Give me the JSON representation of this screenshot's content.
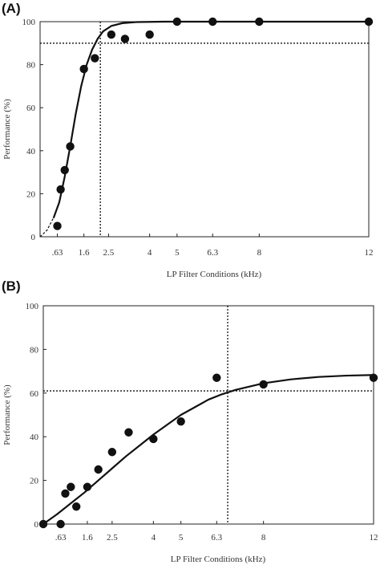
{
  "chart_data": [
    {
      "panel_label": "(A)",
      "type": "scatter",
      "xlabel": "LP Filter Conditions (kHz)",
      "ylabel": "Performance (%)",
      "ylim": [
        0,
        100
      ],
      "x_ticks": [
        ".63",
        "1.6",
        "2.5",
        "4",
        "5",
        "6.3",
        "8",
        "12"
      ],
      "y_ticks": [
        "0",
        "20",
        "40",
        "60",
        "80",
        "100"
      ],
      "tick_positions": [
        0.63,
        1.6,
        2.5,
        4,
        5,
        6.3,
        8,
        12
      ],
      "xlim": [
        0,
        12
      ],
      "points": [
        {
          "x": 0.63,
          "y": 5
        },
        {
          "x": 0.75,
          "y": 22
        },
        {
          "x": 0.9,
          "y": 31
        },
        {
          "x": 1.1,
          "y": 42
        },
        {
          "x": 1.6,
          "y": 78
        },
        {
          "x": 2.0,
          "y": 83
        },
        {
          "x": 2.6,
          "y": 94
        },
        {
          "x": 3.1,
          "y": 92
        },
        {
          "x": 4.0,
          "y": 94
        },
        {
          "x": 5.0,
          "y": 100
        },
        {
          "x": 6.3,
          "y": 100
        },
        {
          "x": 8.0,
          "y": 100
        },
        {
          "x": 12.0,
          "y": 100
        }
      ],
      "fit_curve": [
        {
          "x": 0.0,
          "y": 0
        },
        {
          "x": 0.25,
          "y": 3
        },
        {
          "x": 0.5,
          "y": 9
        },
        {
          "x": 0.7,
          "y": 16
        },
        {
          "x": 0.9,
          "y": 28
        },
        {
          "x": 1.1,
          "y": 42
        },
        {
          "x": 1.3,
          "y": 57
        },
        {
          "x": 1.5,
          "y": 70
        },
        {
          "x": 1.7,
          "y": 80
        },
        {
          "x": 1.9,
          "y": 87
        },
        {
          "x": 2.1,
          "y": 92
        },
        {
          "x": 2.3,
          "y": 95.5
        },
        {
          "x": 2.6,
          "y": 98
        },
        {
          "x": 3.0,
          "y": 99.3
        },
        {
          "x": 3.5,
          "y": 99.8
        },
        {
          "x": 4.5,
          "y": 100
        },
        {
          "x": 12.0,
          "y": 100
        }
      ],
      "fit_dashed_until_x": 0.65,
      "criterion_y": 90,
      "criterion_x": 2.2
    },
    {
      "panel_label": "(B)",
      "type": "scatter",
      "xlabel": "LP Filter Conditions (kHz)",
      "ylabel": "Performance (%)",
      "ylim": [
        0,
        100
      ],
      "x_ticks": [
        ".63",
        "1.6",
        "2.5",
        "4",
        "5",
        "6.3",
        "8",
        "12"
      ],
      "y_ticks": [
        "0",
        "20",
        "40",
        "60",
        "80",
        "100"
      ],
      "tick_positions": [
        0.63,
        1.6,
        2.5,
        4,
        5,
        6.3,
        8,
        12
      ],
      "xlim": [
        0,
        12
      ],
      "points": [
        {
          "x": 0.0,
          "y": 0
        },
        {
          "x": 0.63,
          "y": 0
        },
        {
          "x": 0.8,
          "y": 14
        },
        {
          "x": 1.0,
          "y": 17
        },
        {
          "x": 1.2,
          "y": 8
        },
        {
          "x": 1.6,
          "y": 17
        },
        {
          "x": 2.0,
          "y": 25
        },
        {
          "x": 2.5,
          "y": 33
        },
        {
          "x": 3.1,
          "y": 42
        },
        {
          "x": 4.0,
          "y": 39
        },
        {
          "x": 5.0,
          "y": 47
        },
        {
          "x": 6.3,
          "y": 67
        },
        {
          "x": 8.0,
          "y": 64
        },
        {
          "x": 12.0,
          "y": 67
        }
      ],
      "fit_curve": [
        {
          "x": 0.0,
          "y": 0
        },
        {
          "x": 0.5,
          "y": 4.5
        },
        {
          "x": 1.0,
          "y": 9.5
        },
        {
          "x": 1.5,
          "y": 14.5
        },
        {
          "x": 2.0,
          "y": 20
        },
        {
          "x": 2.5,
          "y": 25.5
        },
        {
          "x": 3.0,
          "y": 31
        },
        {
          "x": 3.5,
          "y": 36
        },
        {
          "x": 4.0,
          "y": 41
        },
        {
          "x": 4.5,
          "y": 45.5
        },
        {
          "x": 5.0,
          "y": 50
        },
        {
          "x": 5.5,
          "y": 53.5
        },
        {
          "x": 6.0,
          "y": 57
        },
        {
          "x": 6.5,
          "y": 59.5
        },
        {
          "x": 7.0,
          "y": 61.5
        },
        {
          "x": 8.0,
          "y": 64.5
        },
        {
          "x": 9.0,
          "y": 66.3
        },
        {
          "x": 10.0,
          "y": 67.4
        },
        {
          "x": 11.0,
          "y": 68
        },
        {
          "x": 12.0,
          "y": 68.3
        }
      ],
      "criterion_y": 61,
      "criterion_x": 6.7
    }
  ]
}
